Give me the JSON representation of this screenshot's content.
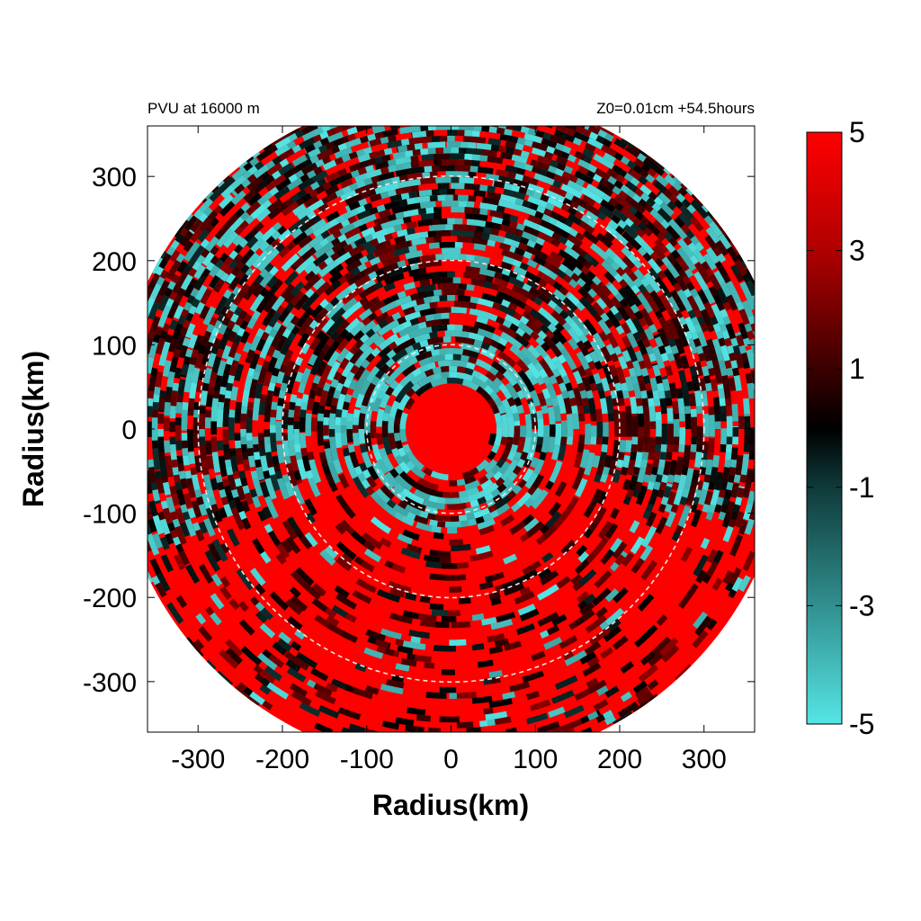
{
  "chart_data": {
    "type": "heatmap",
    "title_left": "PVU at 16000 m",
    "title_right": "Z0=0.01cm  +54.5hours",
    "xlabel": "Radius(km)",
    "ylabel": "Radius(km)",
    "xlim": [
      -360,
      360
    ],
    "ylim": [
      -360,
      360
    ],
    "xticks": [
      -300,
      -200,
      -100,
      0,
      100,
      200,
      300
    ],
    "yticks": [
      -300,
      -200,
      -100,
      0,
      100,
      200,
      300
    ],
    "domain_radius": 400,
    "reference_circles_radius": [
      100,
      200,
      300
    ],
    "colorbar": {
      "range": [
        -5,
        5
      ],
      "ticks": [
        5,
        3,
        1,
        -1,
        -3,
        -5
      ],
      "colors": [
        {
          "value": -5,
          "color": "#55e5e5"
        },
        {
          "value": -1,
          "color": "#0f3a3a"
        },
        {
          "value": 0,
          "color": "#000000"
        },
        {
          "value": 1,
          "color": "#3a0000"
        },
        {
          "value": 3,
          "color": "#b00000"
        },
        {
          "value": 5,
          "color": "#ff0000"
        }
      ]
    },
    "field_description": "polar field of PV values: eye region near +5, rings of negative values (~-5) around radius 50-350 km, mostly +5 in the southern sector"
  }
}
